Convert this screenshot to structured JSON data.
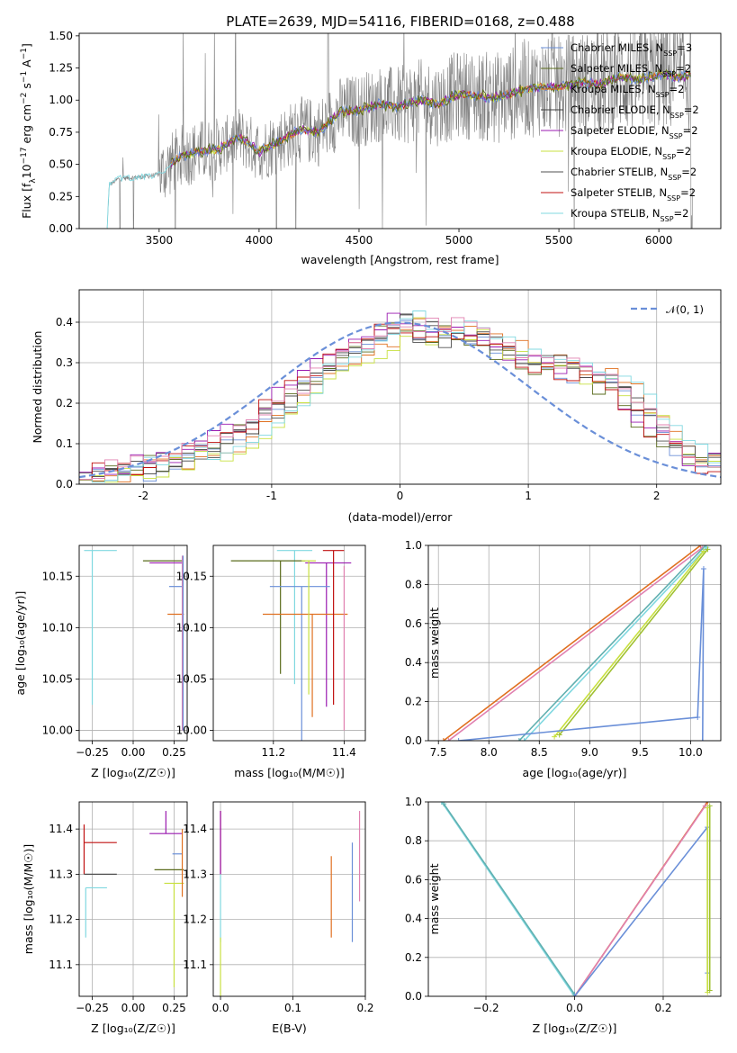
{
  "figure": {
    "title": "PLATE=2639, MJD=54116, FIBERID=0168, z=0.488",
    "colors": {
      "chabrier_miles": "#6a8fd8",
      "salpeter_miles": "#5a6b1c",
      "kroupa_miles": "#e07020",
      "chabrier_elodie": "#404040",
      "salpeter_elodie": "#9a1ab0",
      "kroupa_elodie": "#c8e040",
      "chabrier_stelib": "#505050",
      "salpeter_stelib": "#c01010",
      "kroupa_stelib": "#80d8e0",
      "data": "#808080",
      "normal": "#6a8fd8",
      "pink": "#e080b0",
      "teal": "#60b0b0"
    },
    "legend_spec": {
      "entries": [
        {
          "name": "Chabrier MILES, N",
          "sub": "SSP",
          "tail": "=3",
          "color": "#6a8fd8"
        },
        {
          "name": "Salpeter MILES, N",
          "sub": "SSP",
          "tail": "=2",
          "color": "#5a6b1c"
        },
        {
          "name": "Kroupa MILES, N",
          "sub": "SSP",
          "tail": "=2",
          "color": "#e07020"
        },
        {
          "name": "Chabrier ELODIE, N",
          "sub": "SSP",
          "tail": "=2",
          "color": "#404040"
        },
        {
          "name": "Salpeter ELODIE, N",
          "sub": "SSP",
          "tail": "=2",
          "color": "#9a1ab0"
        },
        {
          "name": "Kroupa ELODIE, N",
          "sub": "SSP",
          "tail": "=2",
          "color": "#c8e040"
        },
        {
          "name": "Chabrier STELIB, N",
          "sub": "SSP",
          "tail": "=2",
          "color": "#505050"
        },
        {
          "name": "Salpeter STELIB, N",
          "sub": "SSP",
          "tail": "=2",
          "color": "#c01010"
        },
        {
          "name": "Kroupa STELIB, N",
          "sub": "SSP",
          "tail": "=2",
          "color": "#80d8e0"
        }
      ]
    },
    "normal_label": "𝒩(0, 1)"
  },
  "chart_data": [
    {
      "type": "line",
      "title": "PLATE=2639, MJD=54116, FIBERID=0168, z=0.488",
      "xlabel": "wavelength [Angstrom, rest frame]",
      "ylabel": "Flux [f",
      "ylabel_parts": [
        "Flux [f",
        "λ",
        "10",
        "−17",
        " erg cm",
        "−2",
        " s",
        "−1",
        " A",
        "−1",
        "]"
      ],
      "xlim": [
        3100,
        6310
      ],
      "ylim": [
        0,
        1.52
      ],
      "xticks": [
        3500,
        4000,
        4500,
        5000,
        5500,
        6000
      ],
      "yticks": [
        0.0,
        0.25,
        0.5,
        0.75,
        1.0,
        1.25,
        1.5
      ],
      "ytick_labels": [
        "0.00",
        "0.25",
        "0.50",
        "0.75",
        "1.00",
        "1.25",
        "1.50"
      ],
      "legend": "upper right",
      "grid": false,
      "model_continuum": [
        [
          3240,
          0.0
        ],
        [
          3250,
          0.34
        ],
        [
          3300,
          0.39
        ],
        [
          3400,
          0.4
        ],
        [
          3500,
          0.42
        ],
        [
          3600,
          0.56
        ],
        [
          3700,
          0.6
        ],
        [
          3800,
          0.62
        ],
        [
          3900,
          0.72
        ],
        [
          4000,
          0.6
        ],
        [
          4100,
          0.68
        ],
        [
          4200,
          0.77
        ],
        [
          4300,
          0.75
        ],
        [
          4400,
          0.9
        ],
        [
          4500,
          0.92
        ],
        [
          4600,
          0.97
        ],
        [
          4700,
          0.95
        ],
        [
          4800,
          1.0
        ],
        [
          4900,
          0.97
        ],
        [
          5000,
          1.05
        ],
        [
          5100,
          1.03
        ],
        [
          5200,
          1.02
        ],
        [
          5300,
          1.07
        ],
        [
          5400,
          1.1
        ],
        [
          5500,
          1.1
        ],
        [
          5600,
          1.14
        ],
        [
          5700,
          1.12
        ],
        [
          5800,
          1.18
        ],
        [
          5900,
          1.16
        ],
        [
          6000,
          1.2
        ],
        [
          6100,
          1.18
        ],
        [
          6160,
          1.2
        ]
      ],
      "data_range": [
        3240,
        6170
      ],
      "series_names": [
        "Chabrier MILES",
        "Salpeter MILES",
        "Kroupa MILES",
        "Chabrier ELODIE",
        "Salpeter ELODIE",
        "Kroupa ELODIE",
        "Chabrier STELIB",
        "Salpeter STELIB",
        "Kroupa STELIB"
      ]
    },
    {
      "type": "bar",
      "xlabel": "(data-model)/error",
      "ylabel": "Normed distribution",
      "xlim": [
        -2.5,
        2.5
      ],
      "ylim": [
        0,
        0.48
      ],
      "xticks": [
        -2,
        -1,
        0,
        1,
        2
      ],
      "yticks": [
        0.0,
        0.1,
        0.2,
        0.3,
        0.4
      ],
      "ytick_labels": [
        "0.0",
        "0.1",
        "0.2",
        "0.3",
        "0.4"
      ],
      "grid": true,
      "legend": "upper right",
      "bin_width": 0.1,
      "bin_start": -2.5,
      "histogram_base": [
        0.02,
        0.02,
        0.03,
        0.03,
        0.04,
        0.04,
        0.05,
        0.06,
        0.07,
        0.08,
        0.09,
        0.1,
        0.12,
        0.14,
        0.16,
        0.19,
        0.21,
        0.24,
        0.27,
        0.28,
        0.3,
        0.33,
        0.34,
        0.35,
        0.38,
        0.4,
        0.37,
        0.38,
        0.36,
        0.38,
        0.37,
        0.36,
        0.34,
        0.33,
        0.32,
        0.31,
        0.3,
        0.29,
        0.28,
        0.27,
        0.27,
        0.25,
        0.23,
        0.2,
        0.16,
        0.12,
        0.1,
        0.08,
        0.06,
        0.05
      ],
      "normal_curve": "gaussian mean 0 sigma 1"
    },
    {
      "type": "scatter",
      "xlabel": "Z [log₁₀(Z/Z☉)]",
      "ylabel": "age  [log₁₀(age/yr)]",
      "xlim": [
        -0.33,
        0.33
      ],
      "ylim": [
        9.99,
        10.18
      ],
      "xticks": [
        -0.25,
        0.0,
        0.25
      ],
      "xtick_labels": [
        "−0.25",
        "0.00",
        "0.25"
      ],
      "yticks": [
        10.0,
        10.05,
        10.1,
        10.15
      ],
      "ytick_labels": [
        "10.00",
        "10.05",
        "10.10",
        "10.15"
      ],
      "grid": true,
      "points": [
        {
          "x": -0.25,
          "y": 10.175,
          "xerr": [
            0.05,
            0.15
          ],
          "yerr": [
            0.15,
            0.0
          ],
          "color": "#80d8e0"
        },
        {
          "x": 0.18,
          "y": 10.165,
          "xerr": [
            0.12,
            0.12
          ],
          "yerr": [
            0.0,
            0.0
          ],
          "color": "#5a6b1c"
        },
        {
          "x": 0.2,
          "y": 10.163,
          "xerr": [
            0.1,
            0.1
          ],
          "yerr": [
            0.0,
            0.0
          ],
          "color": "#9a1ab0"
        },
        {
          "x": 0.26,
          "y": 10.14,
          "xerr": [
            0.04,
            0.04
          ],
          "yerr": [
            0.0,
            0.0
          ],
          "color": "#6a8fd8"
        },
        {
          "x": 0.26,
          "y": 10.113,
          "xerr": [
            0.05,
            0.05
          ],
          "yerr": [
            0.0,
            0.0
          ],
          "color": "#e07020"
        },
        {
          "x": 0.3,
          "y": 10.06,
          "xerr": [
            0.0,
            0.0
          ],
          "yerr": [
            0.06,
            0.11
          ],
          "color": "#e080b0"
        },
        {
          "x": 0.305,
          "y": 10.05,
          "xerr": [
            0.0,
            0.0
          ],
          "yerr": [
            0.05,
            0.12
          ],
          "color": "#6a8fd8"
        }
      ]
    },
    {
      "type": "scatter",
      "xlabel": "mass [log₁₀(M/M☉)]",
      "xlim": [
        11.03,
        11.46
      ],
      "ylim": [
        9.99,
        10.18
      ],
      "xticks": [
        11.2,
        11.4
      ],
      "xtick_labels": [
        "11.2",
        "11.4"
      ],
      "yticks": [
        10.0,
        10.05,
        10.1,
        10.15
      ],
      "ytick_labels": [
        "10.00",
        "10.05",
        "10.10",
        "10.15"
      ],
      "grid": true,
      "points": [
        {
          "x": 11.26,
          "y": 10.175,
          "xerr": [
            0.05,
            0.05
          ],
          "yerr": [
            0.13,
            0.0
          ],
          "color": "#80d8e0"
        },
        {
          "x": 11.22,
          "y": 10.165,
          "xerr": [
            0.14,
            0.07
          ],
          "yerr": [
            0.11,
            0.0
          ],
          "color": "#5a6b1c"
        },
        {
          "x": 11.35,
          "y": 10.163,
          "xerr": [
            0.06,
            0.07
          ],
          "yerr": [
            0.14,
            0.0
          ],
          "color": "#9a1ab0"
        },
        {
          "x": 11.28,
          "y": 10.14,
          "xerr": [
            0.09,
            0.08
          ],
          "yerr": [
            0.15,
            0.0
          ],
          "color": "#6a8fd8"
        },
        {
          "x": 11.31,
          "y": 10.113,
          "xerr": [
            0.14,
            0.1
          ],
          "yerr": [
            0.1,
            0.0
          ],
          "color": "#e07020"
        },
        {
          "x": 11.37,
          "y": 10.175,
          "xerr": [
            0.03,
            0.03
          ],
          "yerr": [
            0.15,
            0.0
          ],
          "color": "#c01010"
        },
        {
          "x": 11.3,
          "y": 10.165,
          "xerr": [
            0.02,
            0.02
          ],
          "yerr": [
            0.13,
            0.0
          ],
          "color": "#c8e040"
        },
        {
          "x": 11.4,
          "y": 10.11,
          "xerr": [
            0.0,
            0.0
          ],
          "yerr": [
            0.11,
            0.05
          ],
          "color": "#e080b0"
        }
      ]
    },
    {
      "type": "line",
      "xlabel": "age  [log₁₀(age/yr)]",
      "ylabel": "mass weight",
      "xlim": [
        7.4,
        10.3
      ],
      "ylim": [
        0.0,
        1.0
      ],
      "xticks": [
        7.5,
        8.0,
        8.5,
        9.0,
        9.5,
        10.0
      ],
      "xtick_labels": [
        "7.5",
        "8.0",
        "8.5",
        "9.0",
        "9.5",
        "10.0"
      ],
      "yticks": [
        0.0,
        0.2,
        0.4,
        0.6,
        0.8,
        1.0
      ],
      "ytick_labels": [
        "0.0",
        "0.2",
        "0.4",
        "0.6",
        "0.8",
        "1.0"
      ],
      "grid": true,
      "series": [
        {
          "color": "#e07020",
          "points": [
            [
              7.55,
              0.0
            ],
            [
              10.1,
              1.0
            ]
          ]
        },
        {
          "color": "#e080b0",
          "points": [
            [
              7.6,
              0.0
            ],
            [
              10.12,
              0.99
            ]
          ]
        },
        {
          "color": "#60b0b0",
          "points": [
            [
              8.3,
              0.0
            ],
            [
              10.15,
              1.0
            ]
          ]
        },
        {
          "color": "#80d8e0",
          "points": [
            [
              8.35,
              0.0
            ],
            [
              10.16,
              0.99
            ]
          ]
        },
        {
          "color": "#c8e040",
          "points": [
            [
              8.65,
              0.02
            ],
            [
              10.13,
              0.97
            ]
          ]
        },
        {
          "color": "#a0c030",
          "points": [
            [
              8.7,
              0.03
            ],
            [
              10.17,
              0.98
            ]
          ]
        },
        {
          "color": "#6a8fd8",
          "points": [
            [
              7.7,
              0.0
            ],
            [
              10.07,
              0.12
            ],
            [
              10.13,
              0.88
            ],
            [
              10.12,
              0.0
            ]
          ]
        }
      ]
    },
    {
      "type": "scatter",
      "xlabel": "Z [log₁₀(Z/Z☉)]",
      "ylabel": "mass [log₁₀(M/M☉)]",
      "xlim": [
        -0.33,
        0.33
      ],
      "ylim": [
        11.03,
        11.46
      ],
      "xticks": [
        -0.25,
        0.0,
        0.25
      ],
      "xtick_labels": [
        "−0.25",
        "0.00",
        "0.25"
      ],
      "yticks": [
        11.1,
        11.2,
        11.3,
        11.4
      ],
      "ytick_labels": [
        "11.1",
        "11.2",
        "11.3",
        "11.4"
      ],
      "grid": true,
      "points": [
        {
          "x": -0.3,
          "y": 11.37,
          "xerr": [
            0.0,
            0.2
          ],
          "yerr": [
            0.07,
            0.04
          ],
          "color": "#c01010"
        },
        {
          "x": -0.3,
          "y": 11.3,
          "xerr": [
            0.0,
            0.2
          ],
          "yerr": [
            0.0,
            0.0
          ],
          "color": "#505050"
        },
        {
          "x": -0.29,
          "y": 11.27,
          "xerr": [
            0.0,
            0.13
          ],
          "yerr": [
            0.11,
            0.0
          ],
          "color": "#80d8e0"
        },
        {
          "x": 0.2,
          "y": 11.39,
          "xerr": [
            0.1,
            0.1
          ],
          "yerr": [
            0.0,
            0.05
          ],
          "color": "#9a1ab0"
        },
        {
          "x": 0.22,
          "y": 11.31,
          "xerr": [
            0.09,
            0.09
          ],
          "yerr": [
            0.0,
            0.0
          ],
          "color": "#5a6b1c"
        },
        {
          "x": 0.27,
          "y": 11.345,
          "xerr": [
            0.03,
            0.03
          ],
          "yerr": [
            0.0,
            0.0
          ],
          "color": "#6a8fd8"
        },
        {
          "x": 0.25,
          "y": 11.28,
          "xerr": [
            0.06,
            0.06
          ],
          "yerr": [
            0.23,
            0.0
          ],
          "color": "#c8e040"
        },
        {
          "x": 0.3,
          "y": 11.33,
          "xerr": [
            0.0,
            0.0
          ],
          "yerr": [
            0.08,
            0.07
          ],
          "color": "#e07020"
        }
      ]
    },
    {
      "type": "scatter",
      "xlabel": "E(B-V)",
      "xlim": [
        -0.01,
        0.2
      ],
      "ylim": [
        11.03,
        11.46
      ],
      "xticks": [
        0.0,
        0.1,
        0.2
      ],
      "xtick_labels": [
        "0.0",
        "0.1",
        "0.2"
      ],
      "yticks": [
        11.1,
        11.2,
        11.3,
        11.4
      ],
      "ytick_labels": [
        "11.1",
        "11.2",
        "11.3",
        "11.4"
      ],
      "grid": true,
      "points": [
        {
          "x": 0.0,
          "y": 11.37,
          "xerr": [
            0,
            0
          ],
          "yerr": [
            0.07,
            0.07
          ],
          "color": "#c01010"
        },
        {
          "x": 0.0,
          "y": 11.37,
          "xerr": [
            0,
            0
          ],
          "yerr": [
            0.07,
            0.07
          ],
          "color": "#9a1ab0"
        },
        {
          "x": 0.0,
          "y": 11.25,
          "xerr": [
            0,
            0
          ],
          "yerr": [
            0.1,
            0.05
          ],
          "color": "#80d8e0"
        },
        {
          "x": 0.0,
          "y": 11.12,
          "xerr": [
            0,
            0
          ],
          "yerr": [
            0.1,
            0.04
          ],
          "color": "#c8e040"
        },
        {
          "x": 0.153,
          "y": 11.25,
          "xerr": [
            0,
            0
          ],
          "yerr": [
            0.09,
            0.09
          ],
          "color": "#e07020"
        },
        {
          "x": 0.182,
          "y": 11.26,
          "xerr": [
            0,
            0
          ],
          "yerr": [
            0.11,
            0.11
          ],
          "color": "#6a8fd8"
        },
        {
          "x": 0.192,
          "y": 11.34,
          "xerr": [
            0,
            0
          ],
          "yerr": [
            0.1,
            0.1
          ],
          "color": "#e080b0"
        }
      ]
    },
    {
      "type": "line",
      "xlabel": "Z [log₁₀(Z/Z☉)]",
      "ylabel": "mass weight",
      "xlim": [
        -0.33,
        0.33
      ],
      "ylim": [
        0.0,
        1.0
      ],
      "xticks": [
        -0.2,
        0.0,
        0.2
      ],
      "xtick_labels": [
        "−0.2",
        "0.0",
        "0.2"
      ],
      "yticks": [
        0.0,
        0.2,
        0.4,
        0.6,
        0.8,
        1.0
      ],
      "ytick_labels": [
        "0.0",
        "0.2",
        "0.4",
        "0.6",
        "0.8",
        "1.0"
      ],
      "grid": true,
      "series": [
        {
          "color": "#80d8e0",
          "points": [
            [
              -0.3,
              1.0
            ],
            [
              0.0,
              0.0
            ]
          ]
        },
        {
          "color": "#60b0b0",
          "points": [
            [
              -0.295,
              0.99
            ],
            [
              0.0,
              0.01
            ]
          ]
        },
        {
          "color": "#e07020",
          "points": [
            [
              0.0,
              0.0
            ],
            [
              0.3,
              1.0
            ]
          ]
        },
        {
          "color": "#e080b0",
          "points": [
            [
              0.0,
              0.0
            ],
            [
              0.295,
              0.98
            ]
          ]
        },
        {
          "color": "#6a8fd8",
          "points": [
            [
              0.0,
              0.0
            ],
            [
              0.3,
              0.87
            ],
            [
              0.3,
              0.12
            ]
          ]
        },
        {
          "color": "#c8e040",
          "points": [
            [
              0.3,
              0.02
            ],
            [
              0.3,
              0.97
            ]
          ]
        },
        {
          "color": "#a0c030",
          "points": [
            [
              0.305,
              0.03
            ],
            [
              0.305,
              0.98
            ]
          ]
        }
      ]
    }
  ]
}
